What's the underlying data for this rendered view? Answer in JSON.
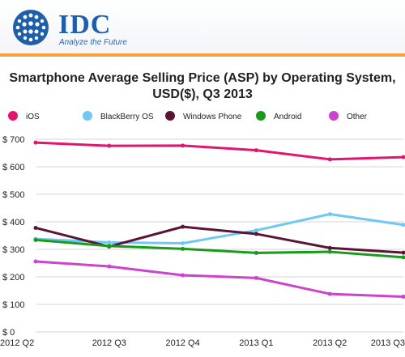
{
  "brand": {
    "logo_text": "IDC",
    "tagline": "Analyze the Future",
    "accent_color": "#f5a43a",
    "brand_color": "#1f5fa8"
  },
  "chart_data": {
    "type": "line",
    "title": "Smartphone Average Selling Price (ASP) by Operating System, USD($), Q3 2013",
    "title_lines": [
      "Smartphone Average Selling Price (ASP) by Operating System,",
      "USD($), Q3 2013"
    ],
    "xlabel": "",
    "ylabel": "",
    "categories": [
      "2012 Q2",
      "2012 Q3",
      "2012 Q4",
      "2013 Q1",
      "2013 Q2",
      "2013 Q3"
    ],
    "ylim": [
      0,
      700
    ],
    "yticks": [
      0,
      100,
      200,
      300,
      400,
      500,
      600,
      700
    ],
    "ytick_labels": [
      "$ 0",
      "$ 100",
      "$ 200",
      "$ 300",
      "$ 400",
      "$ 500",
      "$ 600",
      "$ 700"
    ],
    "grid": true,
    "legend_position": "top",
    "series": [
      {
        "name": "iOS",
        "color": "#e0166f",
        "values": [
          688,
          676,
          677,
          660,
          627,
          635
        ]
      },
      {
        "name": "BlackBerry OS",
        "color": "#6fc8f4",
        "values": [
          338,
          325,
          322,
          369,
          428,
          389
        ]
      },
      {
        "name": "Windows Phone",
        "color": "#5a1535",
        "values": [
          378,
          310,
          382,
          356,
          305,
          288
        ]
      },
      {
        "name": "Android",
        "color": "#1a9a1a",
        "values": [
          334,
          312,
          302,
          287,
          291,
          271
        ]
      },
      {
        "name": "Other",
        "color": "#cc44cc",
        "values": [
          256,
          238,
          206,
          196,
          138,
          128
        ]
      }
    ]
  }
}
